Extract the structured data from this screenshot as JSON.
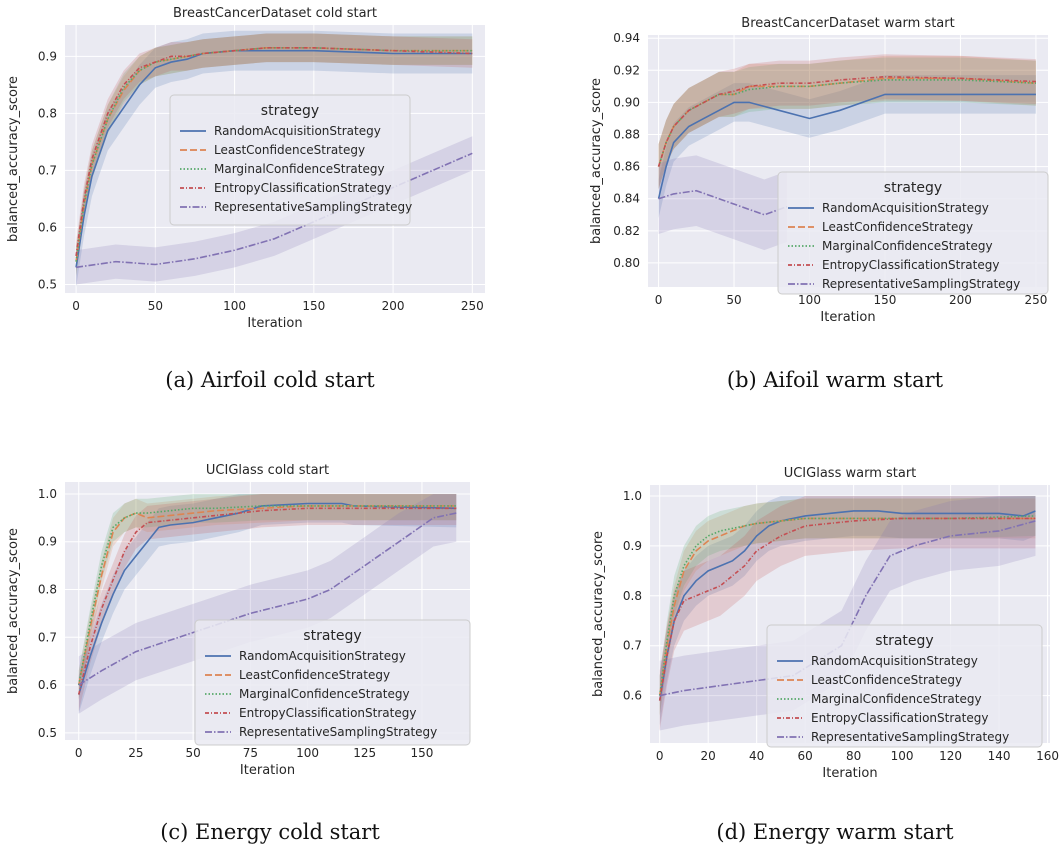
{
  "captions": [
    "(a) Airfoil cold start",
    "(b) Aifoil warm start",
    "(c) Energy cold start",
    "(d) Energy warm start"
  ],
  "legend_title": "strategy",
  "strategies": [
    {
      "name": "RandomAcquisitionStrategy",
      "color": "#4c72b0",
      "dash": ""
    },
    {
      "name": "LeastConfidenceStrategy",
      "color": "#dd8452",
      "dash": "7,3"
    },
    {
      "name": "MarginalConfidenceStrategy",
      "color": "#55a868",
      "dash": "1.5,2"
    },
    {
      "name": "EntropyClassificationStrategy",
      "color": "#c44e52",
      "dash": "4,2,1,2"
    },
    {
      "name": "RepresentativeSamplingStrategy",
      "color": "#8172b3",
      "dash": "7,2,1.5,2"
    }
  ],
  "chart_data": [
    {
      "type": "line",
      "title": "BreastCancerDataset cold start",
      "xlabel": "Iteration",
      "ylabel": "balanced_accuracy_score",
      "xlim": [
        -7,
        258
      ],
      "ylim": [
        0.485,
        0.955
      ],
      "xticks": [
        0,
        50,
        100,
        150,
        200,
        250
      ],
      "yticks": [
        0.5,
        0.6,
        0.7,
        0.8,
        0.9
      ],
      "ytick_labels": [
        "0.5",
        "0.6",
        "0.7",
        "0.8",
        "0.9"
      ],
      "grid": true,
      "legend_position": "center-right",
      "series": [
        {
          "name": "RandomAcquisitionStrategy",
          "band": 0.035,
          "x": [
            0,
            5,
            10,
            20,
            30,
            40,
            50,
            60,
            70,
            80,
            100,
            120,
            150,
            200,
            250
          ],
          "values": [
            0.53,
            0.62,
            0.69,
            0.77,
            0.81,
            0.85,
            0.88,
            0.89,
            0.895,
            0.905,
            0.91,
            0.91,
            0.91,
            0.905,
            0.905
          ]
        },
        {
          "name": "LeastConfidenceStrategy",
          "band": 0.025,
          "x": [
            0,
            5,
            10,
            20,
            30,
            40,
            50,
            60,
            70,
            80,
            100,
            120,
            150,
            200,
            250
          ],
          "values": [
            0.54,
            0.64,
            0.71,
            0.79,
            0.84,
            0.875,
            0.89,
            0.895,
            0.9,
            0.905,
            0.91,
            0.915,
            0.915,
            0.91,
            0.91
          ]
        },
        {
          "name": "MarginalConfidenceStrategy",
          "band": 0.025,
          "x": [
            0,
            5,
            10,
            20,
            30,
            40,
            50,
            60,
            70,
            80,
            100,
            120,
            150,
            200,
            250
          ],
          "values": [
            0.54,
            0.64,
            0.71,
            0.79,
            0.845,
            0.875,
            0.89,
            0.895,
            0.9,
            0.905,
            0.91,
            0.915,
            0.915,
            0.91,
            0.91
          ]
        },
        {
          "name": "EntropyClassificationStrategy",
          "band": 0.025,
          "x": [
            0,
            5,
            10,
            20,
            30,
            40,
            50,
            60,
            70,
            80,
            100,
            120,
            150,
            200,
            250
          ],
          "values": [
            0.55,
            0.65,
            0.72,
            0.8,
            0.85,
            0.88,
            0.89,
            0.9,
            0.9,
            0.905,
            0.91,
            0.915,
            0.915,
            0.91,
            0.905
          ]
        },
        {
          "name": "RepresentativeSamplingStrategy",
          "band": 0.03,
          "x": [
            0,
            25,
            50,
            75,
            100,
            125,
            150,
            175,
            200,
            225,
            250
          ],
          "values": [
            0.53,
            0.54,
            0.535,
            0.545,
            0.56,
            0.58,
            0.61,
            0.64,
            0.67,
            0.7,
            0.73
          ]
        }
      ]
    },
    {
      "type": "line",
      "title": "BreastCancerDataset warm start",
      "xlabel": "Iteration",
      "ylabel": "balanced_accuracy_score",
      "xlim": [
        -7,
        258
      ],
      "ylim": [
        0.785,
        0.942
      ],
      "xticks": [
        0,
        50,
        100,
        150,
        200,
        250
      ],
      "yticks": [
        0.8,
        0.82,
        0.84,
        0.86,
        0.88,
        0.9,
        0.92,
        0.94
      ],
      "ytick_labels": [
        "0.80",
        "0.82",
        "0.84",
        "0.86",
        "0.88",
        "0.90",
        "0.92",
        "0.94"
      ],
      "grid": true,
      "legend_position": "lower-right",
      "series": [
        {
          "name": "RandomAcquisitionStrategy",
          "band": 0.012,
          "x": [
            0,
            5,
            10,
            20,
            30,
            40,
            50,
            60,
            80,
            100,
            120,
            150,
            200,
            250
          ],
          "values": [
            0.84,
            0.86,
            0.875,
            0.885,
            0.89,
            0.895,
            0.9,
            0.9,
            0.895,
            0.89,
            0.895,
            0.905,
            0.905,
            0.905
          ]
        },
        {
          "name": "LeastConfidenceStrategy",
          "band": 0.014,
          "x": [
            0,
            5,
            10,
            20,
            30,
            40,
            50,
            60,
            80,
            100,
            120,
            150,
            200,
            250
          ],
          "values": [
            0.86,
            0.875,
            0.885,
            0.895,
            0.9,
            0.905,
            0.905,
            0.91,
            0.91,
            0.91,
            0.912,
            0.915,
            0.915,
            0.912
          ]
        },
        {
          "name": "MarginalConfidenceStrategy",
          "band": 0.014,
          "x": [
            0,
            5,
            10,
            20,
            30,
            40,
            50,
            60,
            80,
            100,
            120,
            150,
            200,
            250
          ],
          "values": [
            0.86,
            0.875,
            0.885,
            0.895,
            0.9,
            0.905,
            0.905,
            0.908,
            0.91,
            0.91,
            0.912,
            0.914,
            0.914,
            0.912
          ]
        },
        {
          "name": "EntropyClassificationStrategy",
          "band": 0.014,
          "x": [
            0,
            5,
            10,
            20,
            30,
            40,
            50,
            60,
            80,
            100,
            120,
            150,
            200,
            250
          ],
          "values": [
            0.86,
            0.875,
            0.885,
            0.895,
            0.9,
            0.905,
            0.907,
            0.91,
            0.912,
            0.912,
            0.914,
            0.916,
            0.915,
            0.913
          ]
        },
        {
          "name": "RepresentativeSamplingStrategy",
          "band": 0.022,
          "x": [
            0,
            10,
            25,
            40,
            55,
            70,
            85
          ],
          "values": [
            0.84,
            0.843,
            0.845,
            0.84,
            0.835,
            0.83,
            0.835
          ]
        }
      ]
    },
    {
      "type": "line",
      "title": "UCIGlass cold start",
      "xlabel": "Iteration",
      "ylabel": "balanced_accuracy_score",
      "xlim": [
        -6,
        171
      ],
      "ylim": [
        0.485,
        1.025
      ],
      "xticks": [
        0,
        25,
        50,
        75,
        100,
        125,
        150
      ],
      "yticks": [
        0.5,
        0.6,
        0.7,
        0.8,
        0.9,
        1.0
      ],
      "ytick_labels": [
        "0.5",
        "0.6",
        "0.7",
        "0.8",
        "0.9",
        "1.0"
      ],
      "grid": true,
      "legend_position": "lower-right",
      "series": [
        {
          "name": "RandomAcquisitionStrategy",
          "band": 0.04,
          "x": [
            0,
            5,
            10,
            15,
            20,
            25,
            30,
            35,
            40,
            50,
            60,
            70,
            80,
            100,
            115,
            120,
            165
          ],
          "values": [
            0.58,
            0.66,
            0.73,
            0.79,
            0.84,
            0.87,
            0.9,
            0.93,
            0.935,
            0.94,
            0.95,
            0.96,
            0.975,
            0.98,
            0.98,
            0.975,
            0.97
          ]
        },
        {
          "name": "LeastConfidenceStrategy",
          "band": 0.03,
          "x": [
            0,
            5,
            10,
            15,
            20,
            25,
            30,
            40,
            50,
            60,
            80,
            100,
            120,
            165
          ],
          "values": [
            0.6,
            0.72,
            0.83,
            0.92,
            0.95,
            0.96,
            0.95,
            0.955,
            0.96,
            0.965,
            0.97,
            0.975,
            0.975,
            0.975
          ]
        },
        {
          "name": "MarginalConfidenceStrategy",
          "band": 0.03,
          "x": [
            0,
            5,
            10,
            15,
            20,
            25,
            30,
            40,
            50,
            60,
            80,
            100,
            120,
            165
          ],
          "values": [
            0.6,
            0.73,
            0.85,
            0.93,
            0.95,
            0.96,
            0.96,
            0.965,
            0.97,
            0.97,
            0.975,
            0.975,
            0.975,
            0.975
          ]
        },
        {
          "name": "EntropyClassificationStrategy",
          "band": 0.035,
          "x": [
            0,
            5,
            10,
            15,
            20,
            25,
            30,
            40,
            50,
            60,
            80,
            100,
            120,
            165
          ],
          "values": [
            0.58,
            0.68,
            0.76,
            0.82,
            0.88,
            0.92,
            0.94,
            0.945,
            0.95,
            0.955,
            0.965,
            0.97,
            0.97,
            0.97
          ]
        },
        {
          "name": "RepresentativeSamplingStrategy",
          "band": 0.06,
          "x": [
            0,
            10,
            25,
            50,
            75,
            100,
            110,
            125,
            140,
            155,
            165
          ],
          "values": [
            0.6,
            0.63,
            0.67,
            0.71,
            0.75,
            0.78,
            0.8,
            0.85,
            0.9,
            0.95,
            0.96
          ]
        }
      ]
    },
    {
      "type": "line",
      "title": "UCIGlass warm start",
      "xlabel": "Iteration",
      "ylabel": "balanced_accuracy_score",
      "xlim": [
        -4,
        161
      ],
      "ylim": [
        0.505,
        1.022
      ],
      "xticks": [
        0,
        20,
        40,
        60,
        80,
        100,
        120,
        140,
        160
      ],
      "yticks": [
        0.6,
        0.7,
        0.8,
        0.9,
        1.0
      ],
      "ytick_labels": [
        "0.6",
        "0.7",
        "0.8",
        "0.9",
        "1.0"
      ],
      "grid": true,
      "legend_position": "lower-right",
      "series": [
        {
          "name": "RandomAcquisitionStrategy",
          "band": 0.05,
          "x": [
            0,
            3,
            6,
            10,
            15,
            20,
            25,
            30,
            35,
            40,
            45,
            50,
            60,
            70,
            80,
            90,
            100,
            120,
            140,
            150,
            155
          ],
          "values": [
            0.59,
            0.68,
            0.75,
            0.8,
            0.83,
            0.85,
            0.86,
            0.87,
            0.89,
            0.92,
            0.94,
            0.95,
            0.96,
            0.965,
            0.97,
            0.97,
            0.965,
            0.965,
            0.965,
            0.96,
            0.97
          ]
        },
        {
          "name": "LeastConfidenceStrategy",
          "band": 0.04,
          "x": [
            0,
            3,
            6,
            10,
            15,
            20,
            25,
            30,
            35,
            40,
            50,
            60,
            80,
            100,
            120,
            155
          ],
          "values": [
            0.6,
            0.7,
            0.78,
            0.85,
            0.89,
            0.91,
            0.92,
            0.93,
            0.94,
            0.945,
            0.95,
            0.955,
            0.955,
            0.955,
            0.955,
            0.955
          ]
        },
        {
          "name": "MarginalConfidenceStrategy",
          "band": 0.04,
          "x": [
            0,
            3,
            6,
            10,
            15,
            20,
            25,
            30,
            35,
            40,
            50,
            60,
            80,
            100,
            120,
            155
          ],
          "values": [
            0.6,
            0.71,
            0.8,
            0.86,
            0.9,
            0.92,
            0.93,
            0.935,
            0.94,
            0.945,
            0.95,
            0.955,
            0.955,
            0.955,
            0.955,
            0.96
          ]
        },
        {
          "name": "EntropyClassificationStrategy",
          "band": 0.06,
          "x": [
            0,
            3,
            6,
            10,
            15,
            20,
            25,
            30,
            35,
            40,
            50,
            60,
            80,
            100,
            120,
            155
          ],
          "values": [
            0.59,
            0.68,
            0.75,
            0.79,
            0.8,
            0.81,
            0.82,
            0.84,
            0.86,
            0.89,
            0.92,
            0.94,
            0.95,
            0.955,
            0.955,
            0.955
          ]
        },
        {
          "name": "RepresentativeSamplingStrategy",
          "band": 0.07,
          "x": [
            0,
            10,
            25,
            40,
            55,
            65,
            75,
            85,
            95,
            105,
            120,
            140,
            155
          ],
          "values": [
            0.6,
            0.61,
            0.62,
            0.63,
            0.64,
            0.67,
            0.7,
            0.8,
            0.88,
            0.9,
            0.92,
            0.93,
            0.95
          ]
        }
      ]
    }
  ]
}
